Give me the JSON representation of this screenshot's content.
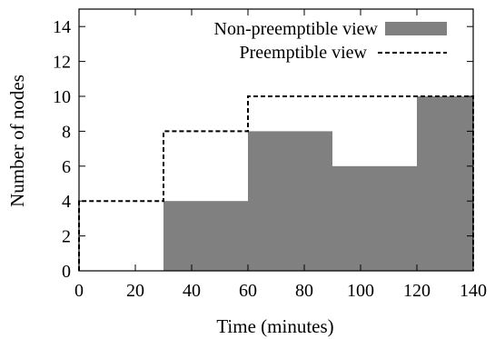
{
  "chart_data": {
    "type": "area",
    "xlabel": "Time (minutes)",
    "ylabel": "Number of nodes",
    "xlim": [
      0,
      140
    ],
    "ylim": [
      0,
      15
    ],
    "xticks": [
      0,
      20,
      40,
      60,
      80,
      100,
      120,
      140
    ],
    "yticks": [
      0,
      2,
      4,
      6,
      8,
      10,
      12,
      14
    ],
    "grid": false,
    "legend_position": "top-right",
    "series": [
      {
        "name": "Non-preemptible view",
        "style": "filled-step",
        "color": "#808080",
        "segments": [
          {
            "x_start": 30,
            "x_end": 60,
            "value": 4
          },
          {
            "x_start": 60,
            "x_end": 90,
            "value": 8
          },
          {
            "x_start": 90,
            "x_end": 120,
            "value": 6
          },
          {
            "x_start": 120,
            "x_end": 140,
            "value": 10
          }
        ]
      },
      {
        "name": "Preemptible view",
        "style": "dashed-step",
        "color": "#000000",
        "segments": [
          {
            "x_start": 0,
            "x_end": 30,
            "value": 4
          },
          {
            "x_start": 30,
            "x_end": 60,
            "value": 8
          },
          {
            "x_start": 60,
            "x_end": 140,
            "value": 10
          }
        ]
      }
    ]
  }
}
